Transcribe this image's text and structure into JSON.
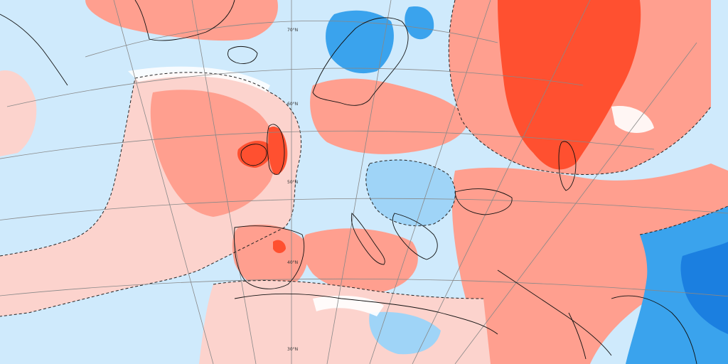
{
  "map": {
    "type": "temperature-anomaly",
    "colors": {
      "warm_strong": "#ff5030",
      "warm_moderate": "#ff9f8f",
      "warm_weak": "#fcd3cd",
      "neutral": "#ffffff",
      "cold_weak": "#cfeafc",
      "cold_moderate": "#9fd4f7",
      "cold_strong": "#3aa3ed",
      "cold_deep": "#1b7fe0",
      "coastline": "#111111",
      "graticule": "#888888",
      "contour_dashed": "#222222"
    },
    "latitude_labels": [
      "70°N",
      "60°N",
      "50°N",
      "40°N",
      "30°N"
    ]
  }
}
